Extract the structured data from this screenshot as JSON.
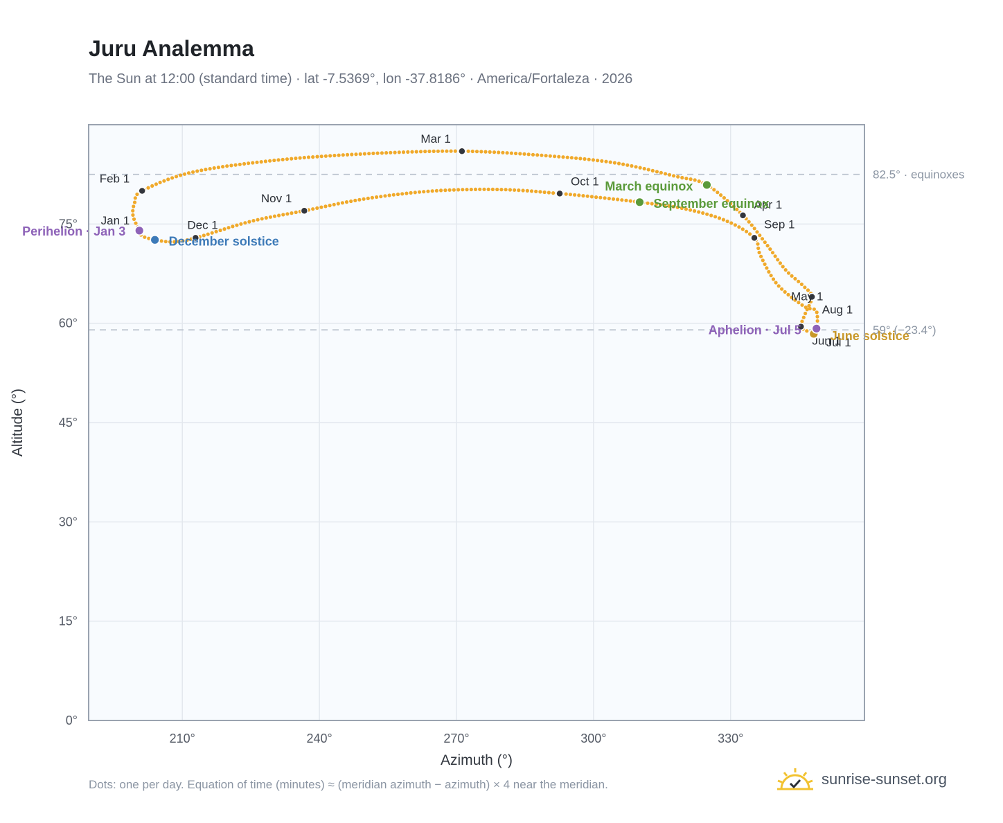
{
  "header": {
    "title": "Juru Analemma",
    "subtitle": "The Sun at 12:00 (standard time) · lat -7.5369°, lon -37.8186° · America/Fortaleza · 2026"
  },
  "footer": {
    "note": "Dots: one per day. Equation of time (minutes) ≈ (meridian azimuth − azimuth) × 4 near the meridian.",
    "brand": "sunrise-sunset.org"
  },
  "chart_data": {
    "type": "scatter",
    "title": "Juru Analemma",
    "xlabel": "Azimuth (°)",
    "ylabel": "Altitude (°)",
    "xlim": [
      189.5,
      359.3
    ],
    "ylim": [
      0,
      90
    ],
    "x_ticks": [
      {
        "value": 210,
        "label": "210°"
      },
      {
        "value": 240,
        "label": "240°"
      },
      {
        "value": 270,
        "label": "270°"
      },
      {
        "value": 300,
        "label": "300°"
      },
      {
        "value": 330,
        "label": "330°"
      }
    ],
    "y_ticks": [
      {
        "value": 0,
        "label": "0°"
      },
      {
        "value": 15,
        "label": "15°"
      },
      {
        "value": 30,
        "label": "30°"
      },
      {
        "value": 45,
        "label": "45°"
      },
      {
        "value": 60,
        "label": "60°"
      },
      {
        "value": 75,
        "label": "75°"
      }
    ],
    "grid": true,
    "colors": {
      "path": "#f0a92a",
      "marker": "#33363d",
      "equinox": "#5a9a3a",
      "december": "#3d7ab8",
      "june": "#c8982a",
      "apsis": "#8e63b8",
      "reference": "#b8c0cc",
      "plot_bg": "#f8fbfe",
      "frame": "#9aa3b0"
    },
    "reference_lines": [
      {
        "value": 82.5,
        "label": "82.5° · equinoxes"
      },
      {
        "value": 59.0,
        "label": "59° (−23.4°)"
      }
    ],
    "month_markers": [
      {
        "label": "Jan 1",
        "az": 200.6,
        "alt": 74.0
      },
      {
        "label": "Feb 1",
        "az": 201.2,
        "alt": 80.0
      },
      {
        "label": "Mar 1",
        "az": 271.2,
        "alt": 86.0
      },
      {
        "label": "Apr 1",
        "az": 332.7,
        "alt": 76.3
      },
      {
        "label": "May 1",
        "az": 347.8,
        "alt": 64.0
      },
      {
        "label": "Jun 1",
        "az": 345.4,
        "alt": 59.5
      },
      {
        "label": "Jul 1",
        "az": 348.2,
        "alt": 58.4
      },
      {
        "label": "Aug 1",
        "az": 348.8,
        "alt": 59.2
      },
      {
        "label": "Sep 1",
        "az": 335.2,
        "alt": 72.9
      },
      {
        "label": "Oct 1",
        "az": 292.6,
        "alt": 79.6
      },
      {
        "label": "Nov 1",
        "az": 236.7,
        "alt": 77.0
      },
      {
        "label": "Dec 1",
        "az": 212.9,
        "alt": 72.9
      }
    ],
    "events": [
      {
        "label": "March equinox",
        "az": 324.8,
        "alt": 80.9,
        "color_key": "equinox"
      },
      {
        "label": "September equinox",
        "az": 310.1,
        "alt": 78.3,
        "color_key": "equinox"
      },
      {
        "label": "December solstice",
        "az": 204.0,
        "alt": 72.6,
        "color_key": "december"
      },
      {
        "label": "June solstice",
        "az": 348.2,
        "alt": 58.4,
        "color_key": "june"
      },
      {
        "label": "Perihelion · Jan 3",
        "az": 200.6,
        "alt": 74.0,
        "color_key": "apsis"
      },
      {
        "label": "Aphelion · Jul 5",
        "az": 348.8,
        "alt": 59.2,
        "color_key": "apsis"
      }
    ],
    "series": [
      {
        "style": "daily-dots",
        "points": [
          [
            212.9,
            72.9
          ],
          [
            208.2,
            72.3
          ],
          [
            204.0,
            72.6
          ],
          [
            201.2,
            73.2
          ],
          [
            200.6,
            74.0
          ],
          [
            199.2,
            76.3
          ],
          [
            199.6,
            78.3
          ],
          [
            201.2,
            80.0
          ],
          [
            212.0,
            82.8
          ],
          [
            230.0,
            84.6
          ],
          [
            250.0,
            85.6
          ],
          [
            271.2,
            86.0
          ],
          [
            290.0,
            85.3
          ],
          [
            305.0,
            84.2
          ],
          [
            318.0,
            82.2
          ],
          [
            324.8,
            80.9
          ],
          [
            332.7,
            76.3
          ],
          [
            338.0,
            71.8
          ],
          [
            342.0,
            68.1
          ],
          [
            346.0,
            65.6
          ],
          [
            347.8,
            64.0
          ],
          [
            346.3,
            61.4
          ],
          [
            345.4,
            59.5
          ],
          [
            346.8,
            58.8
          ],
          [
            348.2,
            58.4
          ],
          [
            348.8,
            59.2
          ],
          [
            349.0,
            60.4
          ],
          [
            348.6,
            62.0
          ],
          [
            346.0,
            62.6
          ],
          [
            340.2,
            65.9
          ],
          [
            336.5,
            70.3
          ],
          [
            335.2,
            72.9
          ],
          [
            329.0,
            75.5
          ],
          [
            320.0,
            77.3
          ],
          [
            310.1,
            78.3
          ],
          [
            300.0,
            79.1
          ],
          [
            292.6,
            79.6
          ],
          [
            280.0,
            80.2
          ],
          [
            265.0,
            80.0
          ],
          [
            250.0,
            78.8
          ],
          [
            236.7,
            77.0
          ],
          [
            225.0,
            75.4
          ],
          [
            212.9,
            72.9
          ]
        ]
      }
    ]
  }
}
